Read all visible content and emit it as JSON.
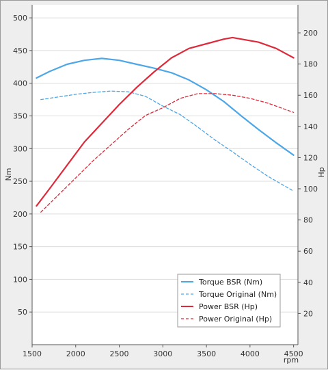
{
  "chart_data": {
    "type": "line",
    "xlabel": "rpm",
    "ylabel_left": "Nm",
    "ylabel_right": "Hp",
    "xlim": [
      1500,
      4550
    ],
    "ylim_left": [
      0,
      520
    ],
    "ylim_right": [
      0,
      218
    ],
    "x_ticks": [
      1500,
      2000,
      2500,
      3000,
      3500,
      4000,
      4500
    ],
    "y_ticks_left": [
      50,
      100,
      150,
      200,
      250,
      300,
      350,
      400,
      450,
      500
    ],
    "y_ticks_right": [
      20,
      40,
      60,
      80,
      100,
      120,
      140,
      160,
      180,
      200
    ],
    "grid": "horizontal",
    "legend_position": "bottom-right",
    "series": [
      {
        "name": "Torque BSR (Nm)",
        "axis": "left",
        "style": "solid",
        "color": "#4da6e6",
        "x": [
          1550,
          1700,
          1900,
          2100,
          2300,
          2500,
          2700,
          2900,
          3100,
          3300,
          3500,
          3700,
          3900,
          4100,
          4300,
          4500
        ],
        "y": [
          408,
          418,
          429,
          435,
          438,
          435,
          429,
          423,
          416,
          405,
          390,
          372,
          350,
          329,
          309,
          290
        ]
      },
      {
        "name": "Torque Original (Nm)",
        "axis": "left",
        "style": "dashed",
        "color": "#4da6e6",
        "x": [
          1600,
          1800,
          2000,
          2200,
          2400,
          2600,
          2800,
          3000,
          3200,
          3400,
          3600,
          3800,
          4000,
          4200,
          4500
        ],
        "y": [
          375,
          379,
          383,
          386,
          388,
          387,
          380,
          365,
          352,
          333,
          313,
          295,
          276,
          258,
          235
        ]
      },
      {
        "name": "Power BSR (Hp)",
        "axis": "right",
        "style": "solid",
        "color": "#dd2a3a",
        "x": [
          1550,
          1700,
          1900,
          2100,
          2300,
          2500,
          2700,
          2900,
          3100,
          3300,
          3500,
          3700,
          3800,
          3900,
          4100,
          4300,
          4500
        ],
        "y": [
          89,
          100,
          115,
          130,
          142,
          154,
          165,
          175,
          184,
          190,
          193,
          196,
          197,
          196,
          194,
          190,
          184
        ]
      },
      {
        "name": "Power Original (Hp)",
        "axis": "right",
        "style": "dashed",
        "color": "#dd2a3a",
        "x": [
          1600,
          1800,
          2000,
          2200,
          2400,
          2600,
          2800,
          3000,
          3200,
          3400,
          3600,
          3800,
          4000,
          4200,
          4500
        ],
        "y": [
          85,
          96,
          107,
          118,
          128,
          138,
          147,
          152,
          158,
          161,
          161,
          160,
          158,
          155,
          149
        ]
      }
    ]
  }
}
